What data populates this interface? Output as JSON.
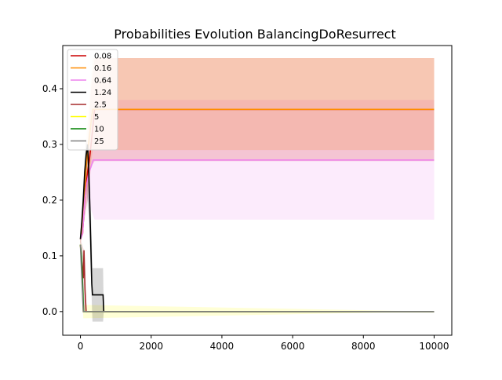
{
  "chart_data": {
    "type": "line",
    "title": "Probabilities Evolution BalancingDoResurrect",
    "xlabel": "",
    "ylabel": "",
    "xlim": [
      -500,
      10500
    ],
    "ylim": [
      -0.0425,
      0.4775
    ],
    "xticks": [
      0,
      2000,
      4000,
      6000,
      8000,
      10000
    ],
    "xtick_labels": [
      "0",
      "2000",
      "4000",
      "6000",
      "8000",
      "10000"
    ],
    "yticks": [
      0.0,
      0.1,
      0.2,
      0.3,
      0.4
    ],
    "ytick_labels": [
      "0.0",
      "0.1",
      "0.2",
      "0.3",
      "0.4"
    ],
    "grid": false,
    "legend_position": "top-left",
    "series": [
      {
        "name": "0.08",
        "color": "#cc0000",
        "points": [
          [
            0,
            0.13
          ],
          [
            60,
            0.14
          ],
          [
            100,
            0.18
          ],
          [
            150,
            0.22
          ],
          [
            200,
            0.25
          ],
          [
            250,
            0.27
          ],
          [
            300,
            0.3
          ],
          [
            350,
            0.33
          ],
          [
            400,
            0.363
          ],
          [
            10000,
            0.363
          ]
        ],
        "band": [
          [
            0,
            0.12,
            0.14
          ],
          [
            200,
            0.2,
            0.3
          ],
          [
            300,
            0.26,
            0.4
          ],
          [
            400,
            0.27,
            0.455
          ],
          [
            10000,
            0.27,
            0.455
          ]
        ]
      },
      {
        "name": "0.16",
        "color": "#ff8c00",
        "points": [
          [
            0,
            0.13
          ],
          [
            60,
            0.15
          ],
          [
            100,
            0.2
          ],
          [
            150,
            0.25
          ],
          [
            200,
            0.29
          ],
          [
            250,
            0.31
          ],
          [
            300,
            0.34
          ],
          [
            350,
            0.363
          ],
          [
            10000,
            0.363
          ]
        ],
        "band": [
          [
            0,
            0.12,
            0.14
          ],
          [
            200,
            0.22,
            0.34
          ],
          [
            350,
            0.29,
            0.455
          ],
          [
            10000,
            0.29,
            0.455
          ]
        ]
      },
      {
        "name": "0.64",
        "color": "#ee82ee",
        "points": [
          [
            0,
            0.13
          ],
          [
            60,
            0.14
          ],
          [
            120,
            0.2
          ],
          [
            180,
            0.23
          ],
          [
            240,
            0.25
          ],
          [
            300,
            0.26
          ],
          [
            360,
            0.272
          ],
          [
            10000,
            0.272
          ]
        ],
        "band": [
          [
            0,
            0.12,
            0.14
          ],
          [
            200,
            0.2,
            0.26
          ],
          [
            400,
            0.165,
            0.38
          ],
          [
            10000,
            0.165,
            0.38
          ]
        ]
      },
      {
        "name": "1.24",
        "color": "#000000",
        "points": [
          [
            0,
            0.13
          ],
          [
            40,
            0.16
          ],
          [
            80,
            0.2
          ],
          [
            120,
            0.25
          ],
          [
            160,
            0.28
          ],
          [
            200,
            0.3
          ],
          [
            230,
            0.26
          ],
          [
            260,
            0.2
          ],
          [
            290,
            0.13
          ],
          [
            320,
            0.05
          ],
          [
            340,
            0.03
          ],
          [
            640,
            0.03
          ],
          [
            660,
            0.0
          ],
          [
            10000,
            0.0
          ]
        ],
        "band": [
          [
            0,
            0.12,
            0.14
          ],
          [
            150,
            0.24,
            0.31
          ],
          [
            250,
            0.15,
            0.29
          ],
          [
            340,
            -0.018,
            0.078
          ],
          [
            640,
            -0.018,
            0.078
          ],
          [
            660,
            0.0,
            0.0
          ],
          [
            10000,
            0.0,
            0.0
          ]
        ]
      },
      {
        "name": "2.5",
        "color": "#a52a2a",
        "points": [
          [
            0,
            0.12
          ],
          [
            40,
            0.09
          ],
          [
            80,
            0.06
          ],
          [
            100,
            0.11
          ],
          [
            130,
            0.04
          ],
          [
            160,
            0.0
          ],
          [
            10000,
            0.0
          ]
        ],
        "band": [
          [
            0,
            0.11,
            0.13
          ],
          [
            100,
            0.0,
            0.11
          ],
          [
            160,
            0.0,
            0.0
          ],
          [
            10000,
            0.0,
            0.0
          ]
        ]
      },
      {
        "name": "5",
        "color": "#ffff00",
        "points": [
          [
            0,
            0.12
          ],
          [
            40,
            0.08
          ],
          [
            80,
            0.0
          ],
          [
            10000,
            0.0
          ]
        ],
        "band": [
          [
            0,
            0.11,
            0.13
          ],
          [
            80,
            -0.012,
            0.012
          ],
          [
            10000,
            0.0,
            0.0
          ]
        ]
      },
      {
        "name": "10",
        "color": "#008000",
        "points": [
          [
            0,
            0.12
          ],
          [
            30,
            0.1
          ],
          [
            60,
            0.05
          ],
          [
            90,
            0.0
          ],
          [
            10000,
            0.0
          ]
        ],
        "band": [
          [
            0,
            0.11,
            0.13
          ],
          [
            90,
            0.0,
            0.0
          ],
          [
            10000,
            0.0,
            0.0
          ]
        ]
      },
      {
        "name": "25",
        "color": "#808080",
        "points": [
          [
            0,
            0.12
          ],
          [
            40,
            0.06
          ],
          [
            80,
            0.0
          ],
          [
            10000,
            0.0
          ]
        ],
        "band": [
          [
            0,
            0.11,
            0.13
          ],
          [
            80,
            0.0,
            0.0
          ],
          [
            10000,
            0.0,
            0.0
          ]
        ]
      }
    ]
  }
}
